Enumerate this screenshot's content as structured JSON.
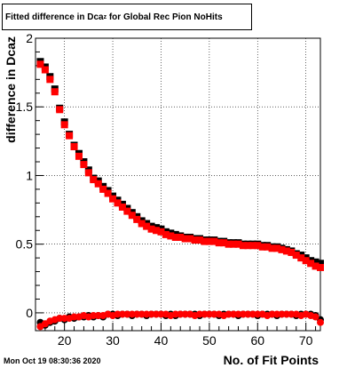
{
  "title": {
    "main": "Fitted difference in Dca",
    "sub": "z",
    "rest": " for Global Rec Pion NoHits"
  },
  "footer": {
    "timestamp": "Mon Oct 19 08:30:36 2020"
  },
  "chart_data": {
    "type": "scatter",
    "title": "Fitted difference in Dca_z for Global Rec Pion NoHits",
    "xlabel": "No. of Fit Points",
    "ylabel": "difference in Dca_z",
    "xlim": [
      14,
      73
    ],
    "ylim": [
      -0.13,
      2.0
    ],
    "x_ticks": [
      20,
      30,
      40,
      50,
      60,
      70
    ],
    "y_ticks": [
      0,
      0.5,
      1,
      1.5,
      2
    ],
    "y_tick_labels": [
      "0",
      "0.5",
      "1",
      "1.5",
      "2"
    ],
    "grid": true,
    "colors": {
      "series_a": "#000000",
      "series_b": "#ff0000"
    },
    "series": [
      {
        "marker": "square",
        "x": [
          15,
          16,
          17,
          18,
          19,
          20,
          21,
          22,
          23,
          24,
          25,
          26,
          27,
          28,
          29,
          30,
          31,
          32,
          33,
          34,
          35,
          36,
          37,
          38,
          39,
          40,
          41,
          42,
          43,
          44,
          45,
          46,
          47,
          48,
          49,
          50,
          51,
          52,
          53,
          54,
          55,
          56,
          57,
          58,
          59,
          60,
          61,
          62,
          63,
          64,
          65,
          66,
          67,
          68,
          69,
          70,
          71,
          72,
          73
        ],
        "y": [
          1.83,
          1.79,
          1.72,
          1.63,
          1.49,
          1.39,
          1.3,
          1.22,
          1.16,
          1.1,
          1.04,
          0.98,
          0.96,
          0.92,
          0.89,
          0.85,
          0.82,
          0.79,
          0.76,
          0.73,
          0.7,
          0.67,
          0.65,
          0.63,
          0.62,
          0.61,
          0.59,
          0.58,
          0.57,
          0.56,
          0.55,
          0.55,
          0.54,
          0.54,
          0.53,
          0.53,
          0.53,
          0.52,
          0.52,
          0.51,
          0.51,
          0.51,
          0.5,
          0.5,
          0.5,
          0.5,
          0.49,
          0.49,
          0.48,
          0.48,
          0.47,
          0.46,
          0.45,
          0.43,
          0.42,
          0.4,
          0.38,
          0.37,
          0.36
        ]
      },
      {
        "marker": "square",
        "x": [
          15,
          16,
          17,
          18,
          19,
          20,
          21,
          22,
          23,
          24,
          25,
          26,
          27,
          28,
          29,
          30,
          31,
          32,
          33,
          34,
          35,
          36,
          37,
          38,
          39,
          40,
          41,
          42,
          43,
          44,
          45,
          46,
          47,
          48,
          49,
          50,
          51,
          52,
          53,
          54,
          55,
          56,
          57,
          58,
          59,
          60,
          61,
          62,
          63,
          64,
          65,
          66,
          67,
          68,
          69,
          70,
          71,
          72,
          73
        ],
        "y": [
          1.81,
          1.77,
          1.7,
          1.61,
          1.48,
          1.37,
          1.29,
          1.21,
          1.14,
          1.08,
          1.02,
          0.97,
          0.94,
          0.9,
          0.87,
          0.83,
          0.8,
          0.77,
          0.74,
          0.71,
          0.68,
          0.65,
          0.63,
          0.61,
          0.6,
          0.59,
          0.57,
          0.56,
          0.55,
          0.55,
          0.54,
          0.54,
          0.53,
          0.53,
          0.52,
          0.52,
          0.52,
          0.51,
          0.51,
          0.5,
          0.5,
          0.5,
          0.49,
          0.49,
          0.49,
          0.49,
          0.48,
          0.48,
          0.47,
          0.47,
          0.46,
          0.45,
          0.44,
          0.42,
          0.4,
          0.38,
          0.36,
          0.34,
          0.33
        ]
      },
      {
        "marker": "circle",
        "x": [
          15,
          16,
          17,
          18,
          19,
          20,
          21,
          22,
          23,
          24,
          25,
          26,
          27,
          28,
          29,
          30,
          31,
          32,
          33,
          34,
          35,
          36,
          37,
          38,
          39,
          40,
          41,
          42,
          43,
          44,
          45,
          46,
          47,
          48,
          49,
          50,
          51,
          52,
          53,
          54,
          55,
          56,
          57,
          58,
          59,
          60,
          61,
          62,
          63,
          64,
          65,
          66,
          67,
          68,
          69,
          70,
          71,
          72,
          73
        ],
        "y": [
          -0.07,
          -0.09,
          -0.07,
          -0.06,
          -0.04,
          -0.05,
          -0.03,
          -0.04,
          -0.03,
          -0.03,
          -0.02,
          -0.03,
          -0.02,
          -0.03,
          -0.01,
          -0.01,
          -0.02,
          -0.01,
          -0.01,
          -0.02,
          -0.01,
          -0.01,
          -0.02,
          -0.01,
          -0.01,
          -0.01,
          -0.02,
          -0.01,
          -0.02,
          -0.01,
          -0.01,
          -0.01,
          -0.01,
          -0.02,
          -0.01,
          -0.01,
          -0.01,
          -0.02,
          -0.01,
          -0.01,
          -0.01,
          -0.02,
          -0.01,
          -0.01,
          -0.01,
          -0.02,
          -0.01,
          -0.01,
          -0.01,
          -0.02,
          -0.01,
          -0.01,
          -0.01,
          -0.02,
          -0.01,
          -0.01,
          -0.01,
          -0.02,
          -0.05
        ]
      },
      {
        "marker": "circle",
        "x": [
          15,
          16,
          17,
          18,
          19,
          20,
          21,
          22,
          23,
          24,
          25,
          26,
          27,
          28,
          29,
          30,
          31,
          32,
          33,
          34,
          35,
          36,
          37,
          38,
          39,
          40,
          41,
          42,
          43,
          44,
          45,
          46,
          47,
          48,
          49,
          50,
          51,
          52,
          53,
          54,
          55,
          56,
          57,
          58,
          59,
          60,
          61,
          62,
          63,
          64,
          65,
          66,
          67,
          68,
          69,
          70,
          71,
          72,
          73
        ],
        "y": [
          -0.1,
          -0.08,
          -0.06,
          -0.05,
          -0.04,
          -0.04,
          -0.04,
          -0.03,
          -0.03,
          -0.02,
          -0.03,
          -0.02,
          -0.02,
          -0.02,
          -0.01,
          -0.02,
          -0.01,
          -0.01,
          -0.01,
          -0.01,
          -0.01,
          -0.01,
          -0.01,
          -0.01,
          -0.01,
          -0.01,
          -0.01,
          -0.02,
          -0.01,
          -0.01,
          -0.01,
          -0.01,
          -0.02,
          -0.01,
          -0.01,
          -0.01,
          -0.01,
          -0.01,
          -0.02,
          -0.01,
          -0.01,
          -0.01,
          -0.01,
          -0.01,
          -0.01,
          -0.01,
          -0.01,
          -0.02,
          -0.01,
          -0.01,
          -0.01,
          -0.01,
          -0.01,
          -0.01,
          -0.02,
          -0.01,
          -0.02,
          -0.03,
          -0.07
        ]
      }
    ]
  }
}
